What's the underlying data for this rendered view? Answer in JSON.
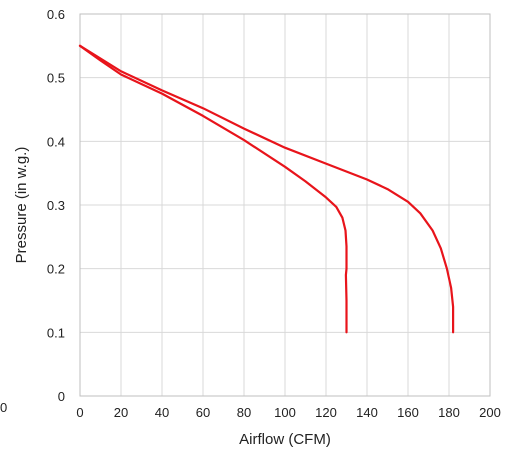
{
  "chart_data": {
    "type": "line",
    "title": "",
    "xlabel": "Airflow (CFM)",
    "ylabel": "Pressure (in w.g.)",
    "xlim": [
      0,
      200
    ],
    "ylim": [
      0,
      0.6
    ],
    "x_ticks": [
      "0",
      "20",
      "40",
      "60",
      "80",
      "100",
      "120",
      "140",
      "160",
      "180",
      "200"
    ],
    "y_ticks": [
      "0",
      "0.1",
      "0.2",
      "0.3",
      "0.4",
      "0.5",
      "0.6"
    ],
    "stray_label": "0",
    "grid": true,
    "legend": "none",
    "series_color": "#e8141b",
    "series": [
      {
        "x": [
          0,
          10,
          20,
          40,
          60,
          80,
          100,
          110,
          120,
          125,
          128,
          129.5,
          130,
          130,
          129.7,
          130,
          130
        ],
        "y": [
          0.55,
          0.527,
          0.505,
          0.475,
          0.44,
          0.402,
          0.36,
          0.337,
          0.312,
          0.297,
          0.28,
          0.26,
          0.235,
          0.2,
          0.19,
          0.15,
          0.1
        ]
      },
      {
        "x": [
          0,
          10,
          20,
          40,
          60,
          80,
          100,
          120,
          140,
          150,
          160,
          166,
          172,
          176,
          179,
          181,
          182,
          182,
          182
        ],
        "y": [
          0.55,
          0.53,
          0.51,
          0.48,
          0.452,
          0.42,
          0.39,
          0.365,
          0.34,
          0.325,
          0.305,
          0.287,
          0.26,
          0.232,
          0.2,
          0.17,
          0.14,
          0.12,
          0.1
        ]
      }
    ]
  }
}
